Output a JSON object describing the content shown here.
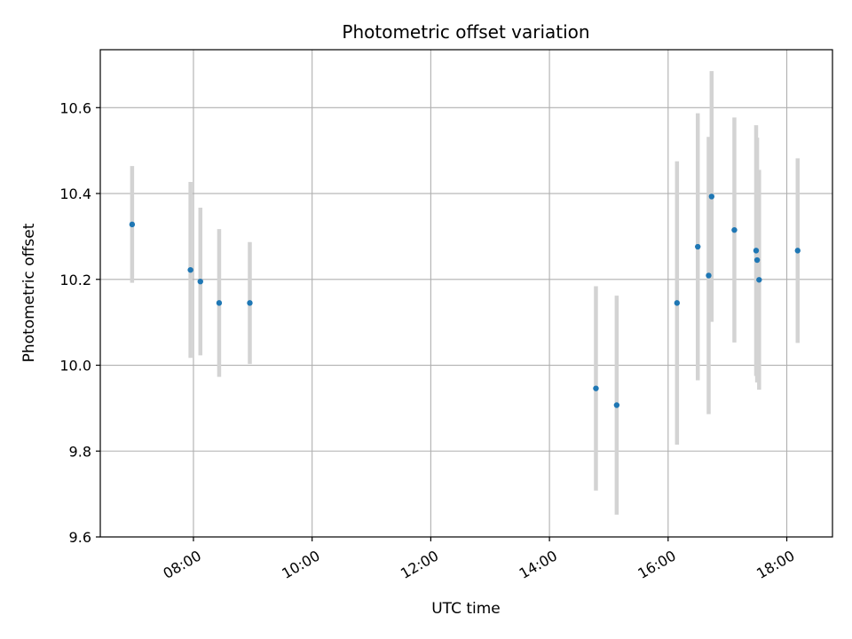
{
  "chart_data": {
    "type": "scatter",
    "title": "Photometric offset variation",
    "xlabel": "UTC time",
    "ylabel": "Photometric offset",
    "x_tick_labels": [
      "08:00",
      "10:00",
      "12:00",
      "14:00",
      "16:00",
      "18:00"
    ],
    "x_tick_hours": [
      8,
      10,
      12,
      14,
      16,
      18
    ],
    "y_tick_labels": [
      "9.6",
      "9.8",
      "10.0",
      "10.2",
      "10.4",
      "10.6"
    ],
    "y_tick_values": [
      9.6,
      9.8,
      10.0,
      10.2,
      10.4,
      10.6
    ],
    "xlim_hours": [
      6.43,
      18.77
    ],
    "ylim": [
      9.6,
      10.735
    ],
    "grid": true,
    "marker_color": "#1f77b4",
    "errorbar_color": "#d3d3d3",
    "series": [
      {
        "points": [
          {
            "time": "06:58",
            "y": 10.328,
            "err": 0.136
          },
          {
            "time": "07:57",
            "y": 10.222,
            "err": 0.205
          },
          {
            "time": "08:07",
            "y": 10.195,
            "err": 0.172
          },
          {
            "time": "08:26",
            "y": 10.145,
            "err": 0.172
          },
          {
            "time": "08:57",
            "y": 10.145,
            "err": 0.142
          },
          {
            "time": "14:47",
            "y": 9.946,
            "err": 0.238
          },
          {
            "time": "15:08",
            "y": 9.907,
            "err": 0.255
          },
          {
            "time": "16:09",
            "y": 10.145,
            "err": 0.33
          },
          {
            "time": "16:30",
            "y": 10.276,
            "err": 0.311
          },
          {
            "time": "16:41",
            "y": 10.209,
            "err": 0.323
          },
          {
            "time": "16:44",
            "y": 10.393,
            "err": 0.292
          },
          {
            "time": "17:07",
            "y": 10.315,
            "err": 0.262
          },
          {
            "time": "17:29",
            "y": 10.267,
            "err": 0.292
          },
          {
            "time": "17:30",
            "y": 10.245,
            "err": 0.285
          },
          {
            "time": "17:32",
            "y": 10.199,
            "err": 0.256
          },
          {
            "time": "18:11",
            "y": 10.267,
            "err": 0.215
          }
        ]
      }
    ]
  }
}
